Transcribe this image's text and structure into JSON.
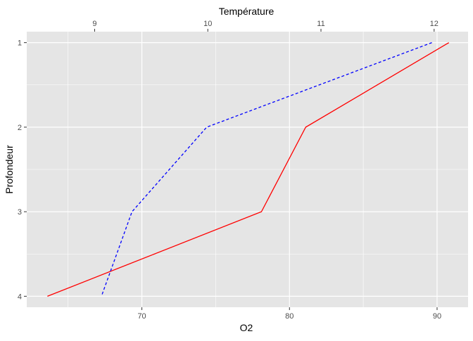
{
  "chart_data": {
    "type": "line",
    "title": "",
    "xlabel_bottom": "O2",
    "xlabel_top": "Température",
    "ylabel": "Profondeur",
    "y_axis_reversed": true,
    "ylim": [
      0.87,
      4.13
    ],
    "ticks": {
      "bottom": [
        70,
        80,
        90
      ],
      "top": [
        9,
        10,
        11,
        12
      ],
      "left": [
        1,
        2,
        3,
        4
      ]
    },
    "xlim_bottom": [
      62.2,
      92.1
    ],
    "xlim_top": [
      8.4,
      12.3
    ],
    "series": [
      {
        "axis": "bottom",
        "color": "#ff0000",
        "linetype": "solid",
        "points": [
          {
            "x": 90.8,
            "y": 1
          },
          {
            "x": 81.1,
            "y": 2
          },
          {
            "x": 78.1,
            "y": 3
          },
          {
            "x": 63.6,
            "y": 4
          }
        ]
      },
      {
        "axis": "top",
        "color": "#0000ff",
        "linetype": "dashed",
        "points": [
          {
            "x": 11.98,
            "y": 1
          },
          {
            "x": 9.99,
            "y": 2
          },
          {
            "x": 9.33,
            "y": 3
          },
          {
            "x": 9.06,
            "y": 4
          }
        ]
      }
    ],
    "grid": true,
    "panel_background": "#e5e5e5",
    "gridline_color": "#ffffff"
  }
}
